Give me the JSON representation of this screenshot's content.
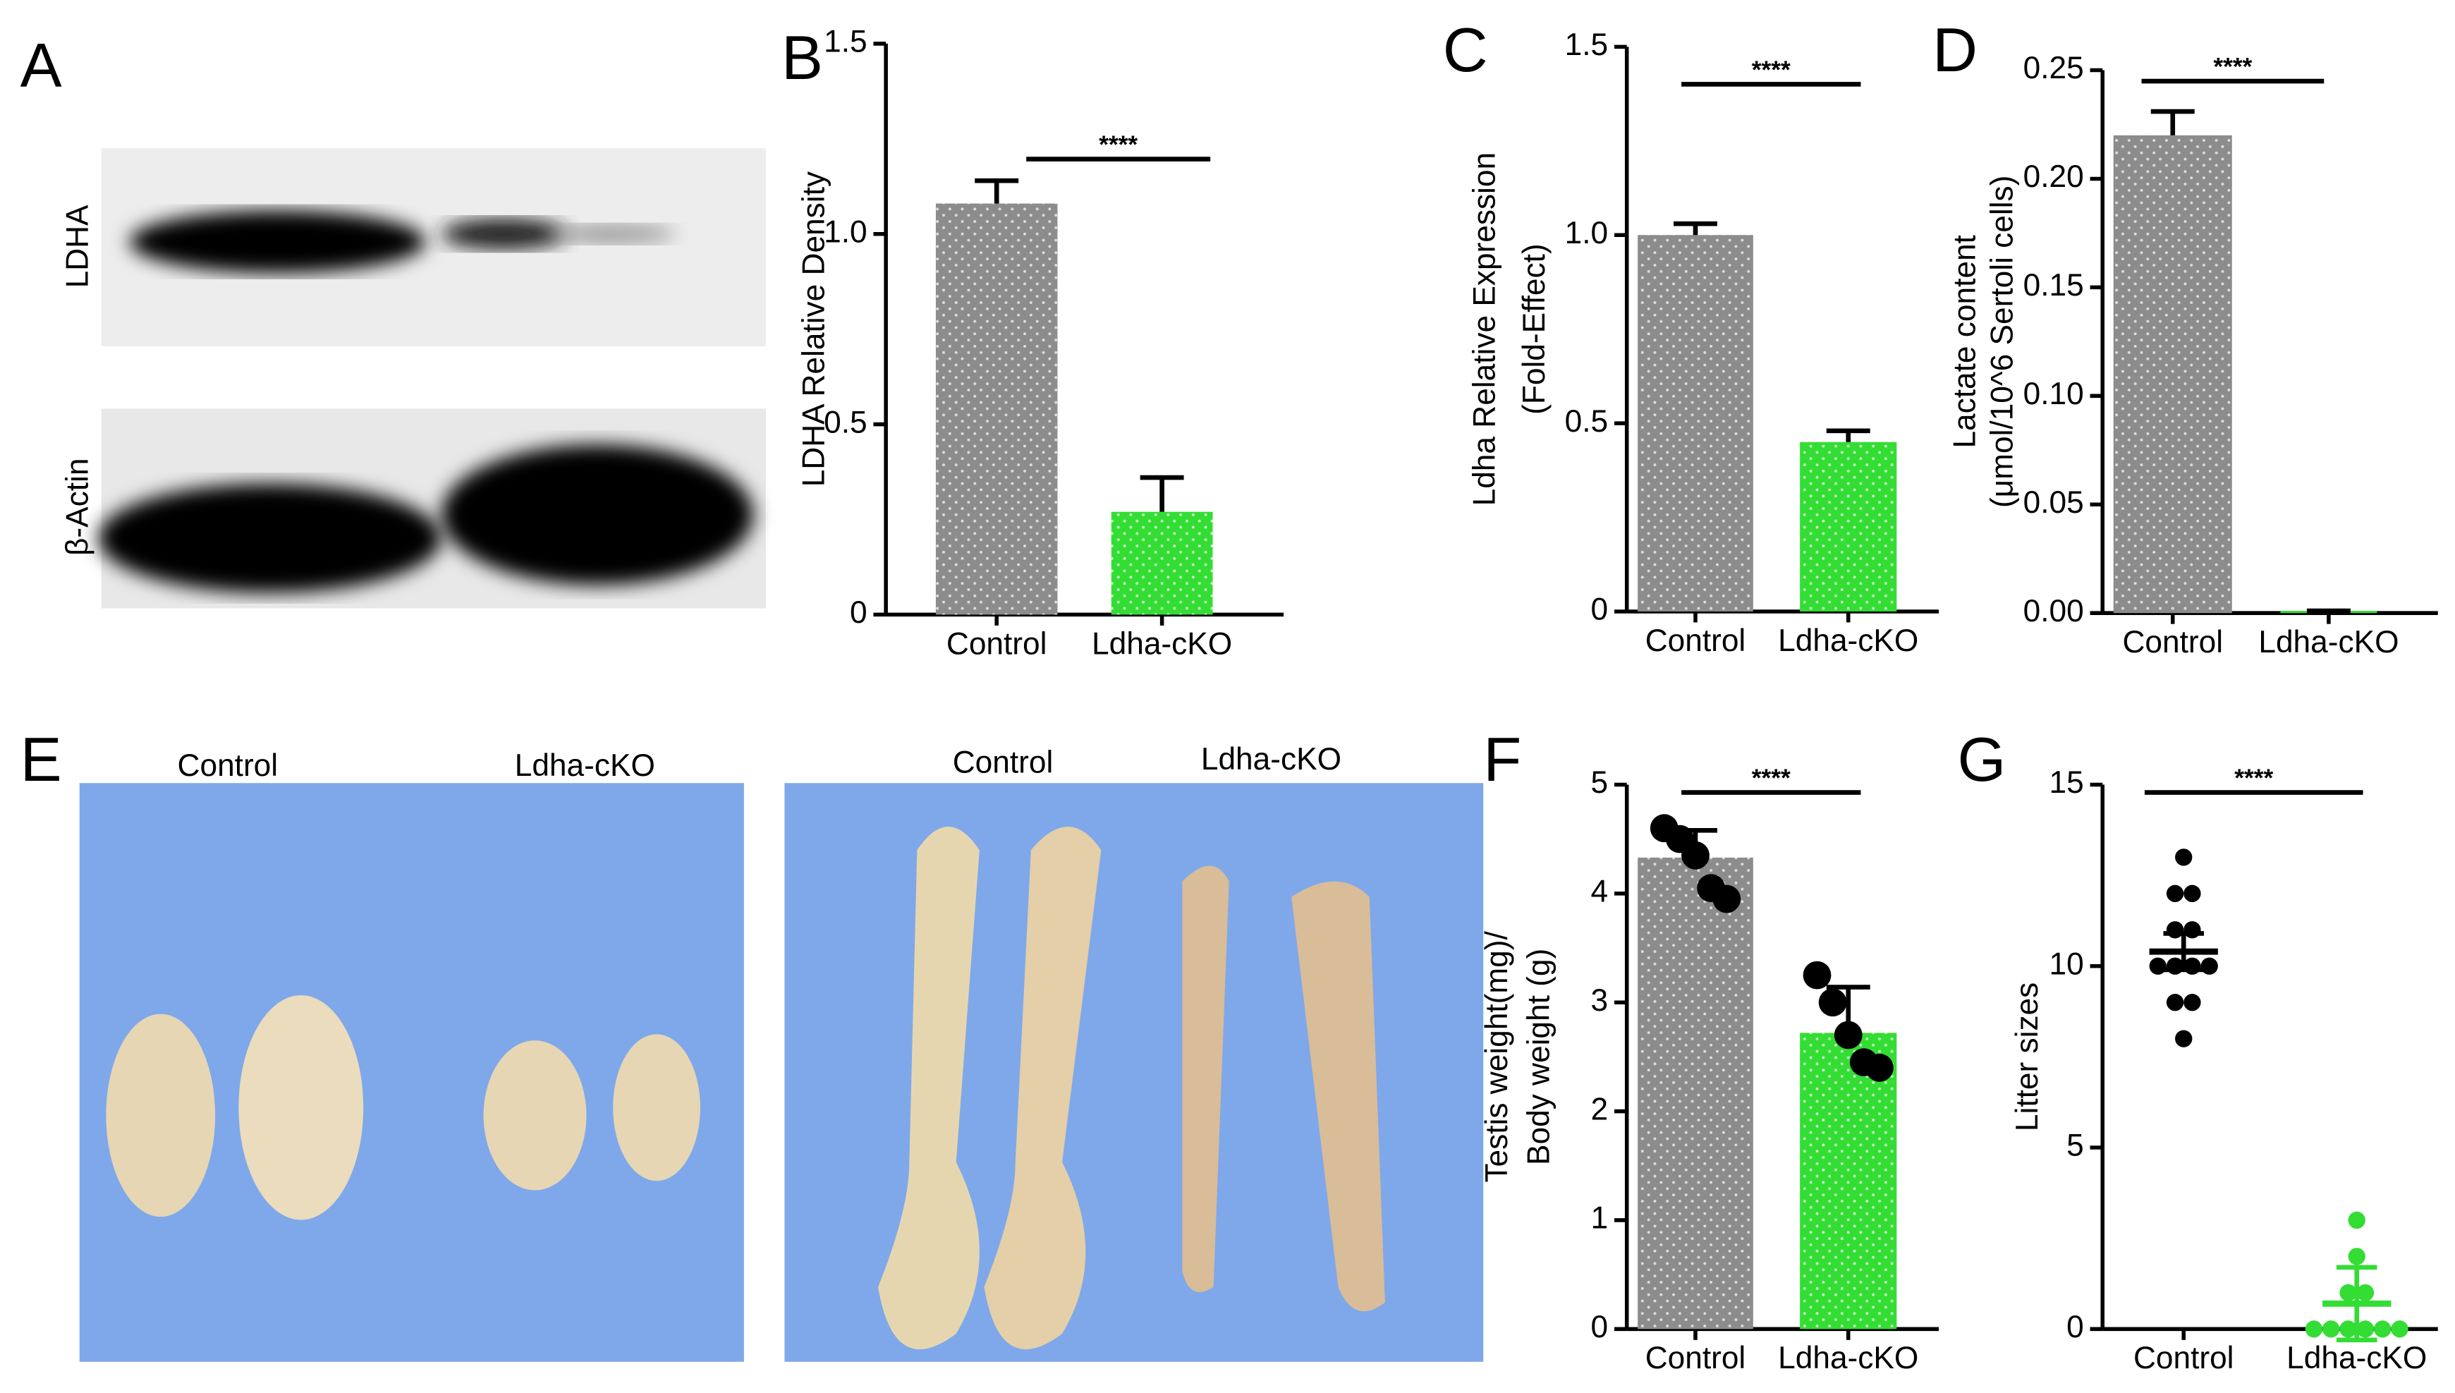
{
  "blot": {
    "panel": "A",
    "bands": [
      "LDHA",
      "β-Actin"
    ]
  },
  "photos": {
    "panel": "E",
    "groups": [
      "Control",
      "Ldha-cKO",
      "Control",
      "Ldha-cKO"
    ]
  },
  "chart_data": [
    {
      "type": "bar",
      "panel": "B",
      "ylabel": [
        "LDHA Relative Density"
      ],
      "categories": [
        "Control",
        "Ldha-cKO"
      ],
      "values": [
        1.08,
        0.27
      ],
      "errors": [
        0.06,
        0.09
      ],
      "colors": [
        "#8c8c8c",
        "#33dd33"
      ],
      "significance": "****",
      "ylim": [
        0,
        1.5
      ],
      "yticks": [
        0,
        0.5,
        {
          "value": 1,
          "label": "1.0"
        },
        1.5
      ]
    },
    {
      "type": "bar",
      "panel": "C",
      "ylabel": [
        "Ldha Relative Expression",
        "(Fold-Effect)"
      ],
      "categories": [
        "Control",
        "Ldha-cKO"
      ],
      "values": [
        1.0,
        0.45
      ],
      "errors": [
        0.03,
        0.03
      ],
      "colors": [
        "#8c8c8c",
        "#33dd33"
      ],
      "significance": "****",
      "ylim": [
        0,
        1.5
      ],
      "yticks": [
        0,
        0.5,
        {
          "value": 1,
          "label": "1.0"
        },
        1.5
      ]
    },
    {
      "type": "bar",
      "panel": "D",
      "ylabel": [
        "Lactate content",
        "(μmol/10^6 Sertoli cells)"
      ],
      "categories": [
        "Control",
        "Ldha-cKO"
      ],
      "values": [
        0.22,
        0.001
      ],
      "errors": [
        0.011,
        0
      ],
      "colors": [
        "#8c8c8c",
        "#33dd33"
      ],
      "significance": "****",
      "ylim": [
        0,
        0.25
      ],
      "yticks": [
        {
          "value": 0,
          "label": "0.00"
        },
        {
          "value": 0.05,
          "label": "0.05"
        },
        {
          "value": 0.1,
          "label": "0.10"
        },
        {
          "value": 0.15,
          "label": "0.15"
        },
        {
          "value": 0.2,
          "label": "0.20"
        },
        {
          "value": 0.25,
          "label": "0.25"
        }
      ]
    },
    {
      "type": "bar",
      "panel": "F",
      "ylabel": [
        "Testis weight(mg)/",
        "Body weight (g)"
      ],
      "categories": [
        "Control",
        "Ldha-cKO"
      ],
      "values": [
        4.33,
        2.72
      ],
      "errors": [
        0.25,
        0.42
      ],
      "colors": [
        "#8c8c8c",
        "#33dd33"
      ],
      "significance": "****",
      "points": [
        [
          4.6,
          4.5,
          4.35,
          4.05,
          3.95
        ],
        [
          3.25,
          3.0,
          2.7,
          2.45,
          2.4
        ]
      ],
      "point_color": "#000000",
      "ylim": [
        0,
        5
      ],
      "yticks": [
        0,
        1,
        2,
        3,
        4,
        5
      ]
    },
    {
      "type": "strip",
      "panel": "G",
      "ylabel": [
        "Litter sizes"
      ],
      "categories": [
        "Control",
        "Ldha-cKO"
      ],
      "values": [
        10.4,
        0.7
      ],
      "errors": [
        0.5,
        1.0
      ],
      "colors": [
        "#000000",
        "#33dd33"
      ],
      "significance": "****",
      "points": [
        [
          13,
          12,
          12,
          11,
          11,
          10,
          10,
          10,
          10,
          9,
          9,
          8
        ],
        [
          3,
          2,
          1,
          1,
          0,
          0,
          0,
          0,
          0,
          0
        ]
      ],
      "ylim": [
        0,
        15
      ],
      "yticks": [
        0,
        5,
        10,
        15
      ]
    }
  ]
}
